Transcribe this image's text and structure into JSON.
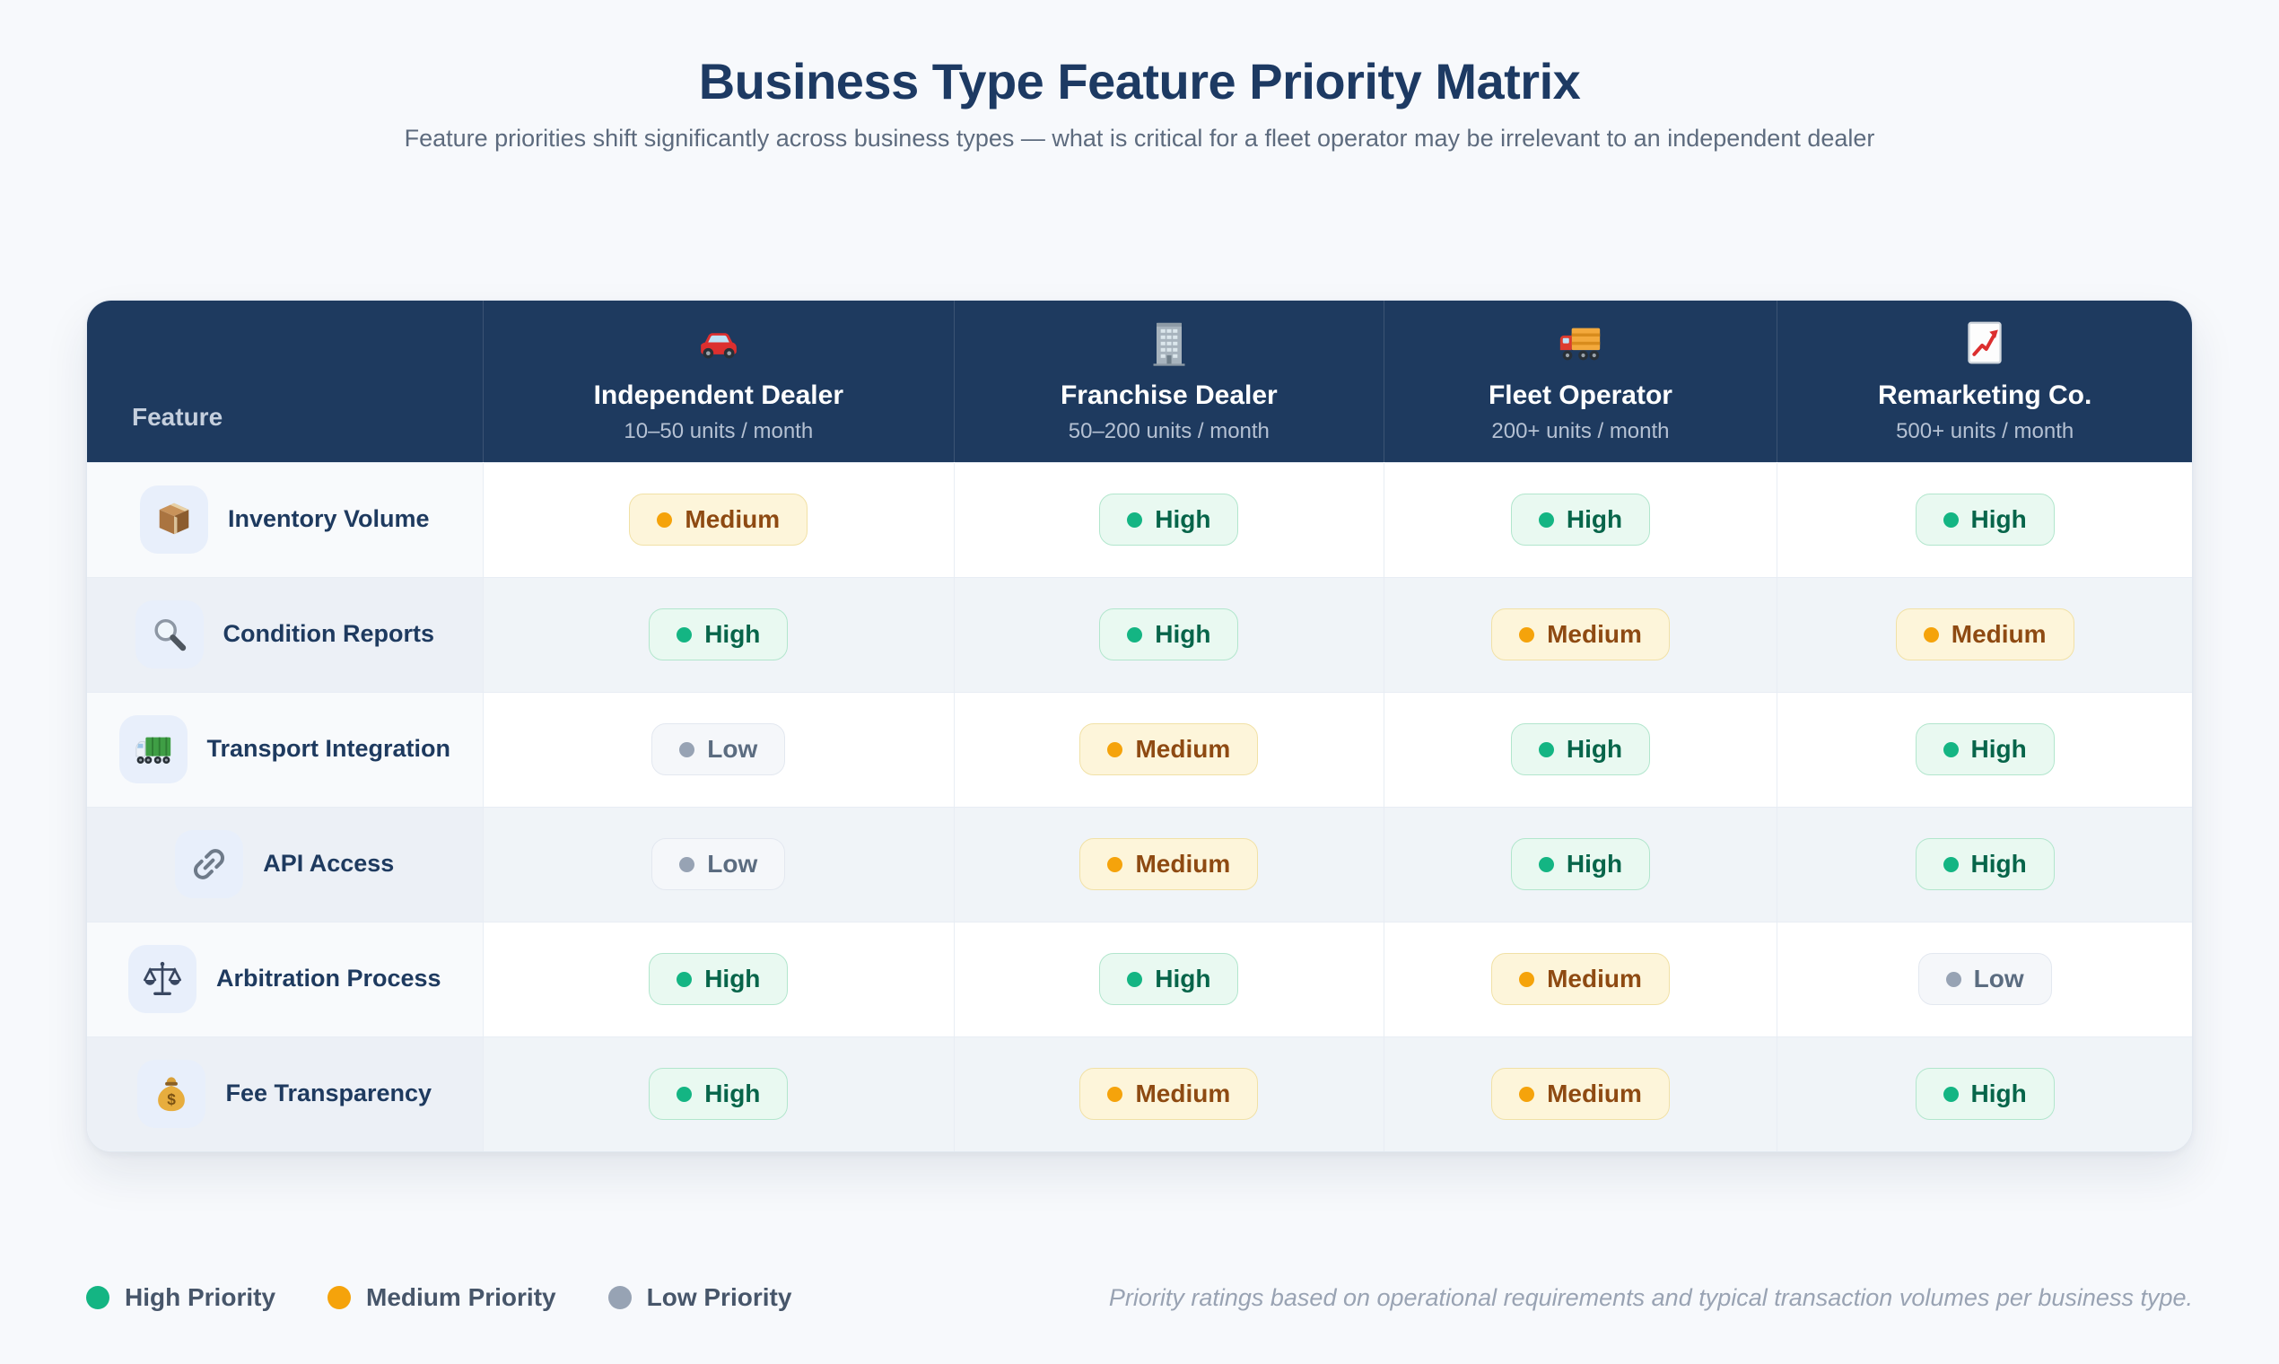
{
  "page": {
    "title": "Business Type Feature Priority Matrix",
    "subtitle": "Feature priorities shift significantly across business types — what is critical for a fleet operator may be irrelevant to an independent dealer"
  },
  "table": {
    "feature_header": "Feature",
    "columns": [
      {
        "icon": "red-car-icon",
        "name": "Independent Dealer",
        "volume": "10–50 units / month"
      },
      {
        "icon": "office-building-icon",
        "name": "Franchise Dealer",
        "volume": "50–200 units / month"
      },
      {
        "icon": "delivery-truck-icon",
        "name": "Fleet Operator",
        "volume": "200+ units / month"
      },
      {
        "icon": "chart-increasing-icon",
        "name": "Remarketing Co.",
        "volume": "500+ units / month"
      }
    ],
    "rows": [
      {
        "icon": "package-icon",
        "feature": "Inventory Volume",
        "priorities": [
          "Medium",
          "High",
          "High",
          "High"
        ]
      },
      {
        "icon": "magnifying-glass-icon",
        "feature": "Condition Reports",
        "priorities": [
          "High",
          "High",
          "Medium",
          "Medium"
        ]
      },
      {
        "icon": "articulated-lorry-icon",
        "feature": "Transport Integration",
        "priorities": [
          "Low",
          "Medium",
          "High",
          "High"
        ]
      },
      {
        "icon": "link-icon",
        "feature": "API Access",
        "priorities": [
          "Low",
          "Medium",
          "High",
          "High"
        ]
      },
      {
        "icon": "scales-icon",
        "feature": "Arbitration Process",
        "priorities": [
          "High",
          "High",
          "Medium",
          "Low"
        ]
      },
      {
        "icon": "money-bag-icon",
        "feature": "Fee Transparency",
        "priorities": [
          "High",
          "Medium",
          "Medium",
          "High"
        ]
      }
    ]
  },
  "legend": {
    "items": [
      {
        "label": "High Priority",
        "color": "#14b583"
      },
      {
        "label": "Medium Priority",
        "color": "#f5a30b"
      },
      {
        "label": "Low Priority",
        "color": "#97a3b4"
      }
    ],
    "note": "Priority ratings based on operational requirements and typical transaction volumes per business type."
  },
  "colors": {
    "header_bg": "#1e3a5f",
    "high": "#14b583",
    "medium": "#f5a30b",
    "low": "#97a3b4",
    "page_bg": "#f7f9fc"
  },
  "chart_data": {
    "type": "table",
    "title": "Business Type Feature Priority Matrix",
    "subtitle": "Feature priorities shift significantly across business types — what is critical for a fleet operator may be irrelevant to an independent dealer",
    "columns": [
      "Feature",
      "Independent Dealer (10–50 units / month)",
      "Franchise Dealer (50–200 units / month)",
      "Fleet Operator (200+ units / month)",
      "Remarketing Co. (500+ units / month)"
    ],
    "rows": [
      [
        "Inventory Volume",
        "Medium",
        "High",
        "High",
        "High"
      ],
      [
        "Condition Reports",
        "High",
        "High",
        "Medium",
        "Medium"
      ],
      [
        "Transport Integration",
        "Low",
        "Medium",
        "High",
        "High"
      ],
      [
        "API Access",
        "Low",
        "Medium",
        "High",
        "High"
      ],
      [
        "Arbitration Process",
        "High",
        "High",
        "Medium",
        "Low"
      ],
      [
        "Fee Transparency",
        "High",
        "Medium",
        "Medium",
        "High"
      ]
    ],
    "legend": [
      "High Priority",
      "Medium Priority",
      "Low Priority"
    ],
    "footnote": "Priority ratings based on operational requirements and typical transaction volumes per business type."
  }
}
